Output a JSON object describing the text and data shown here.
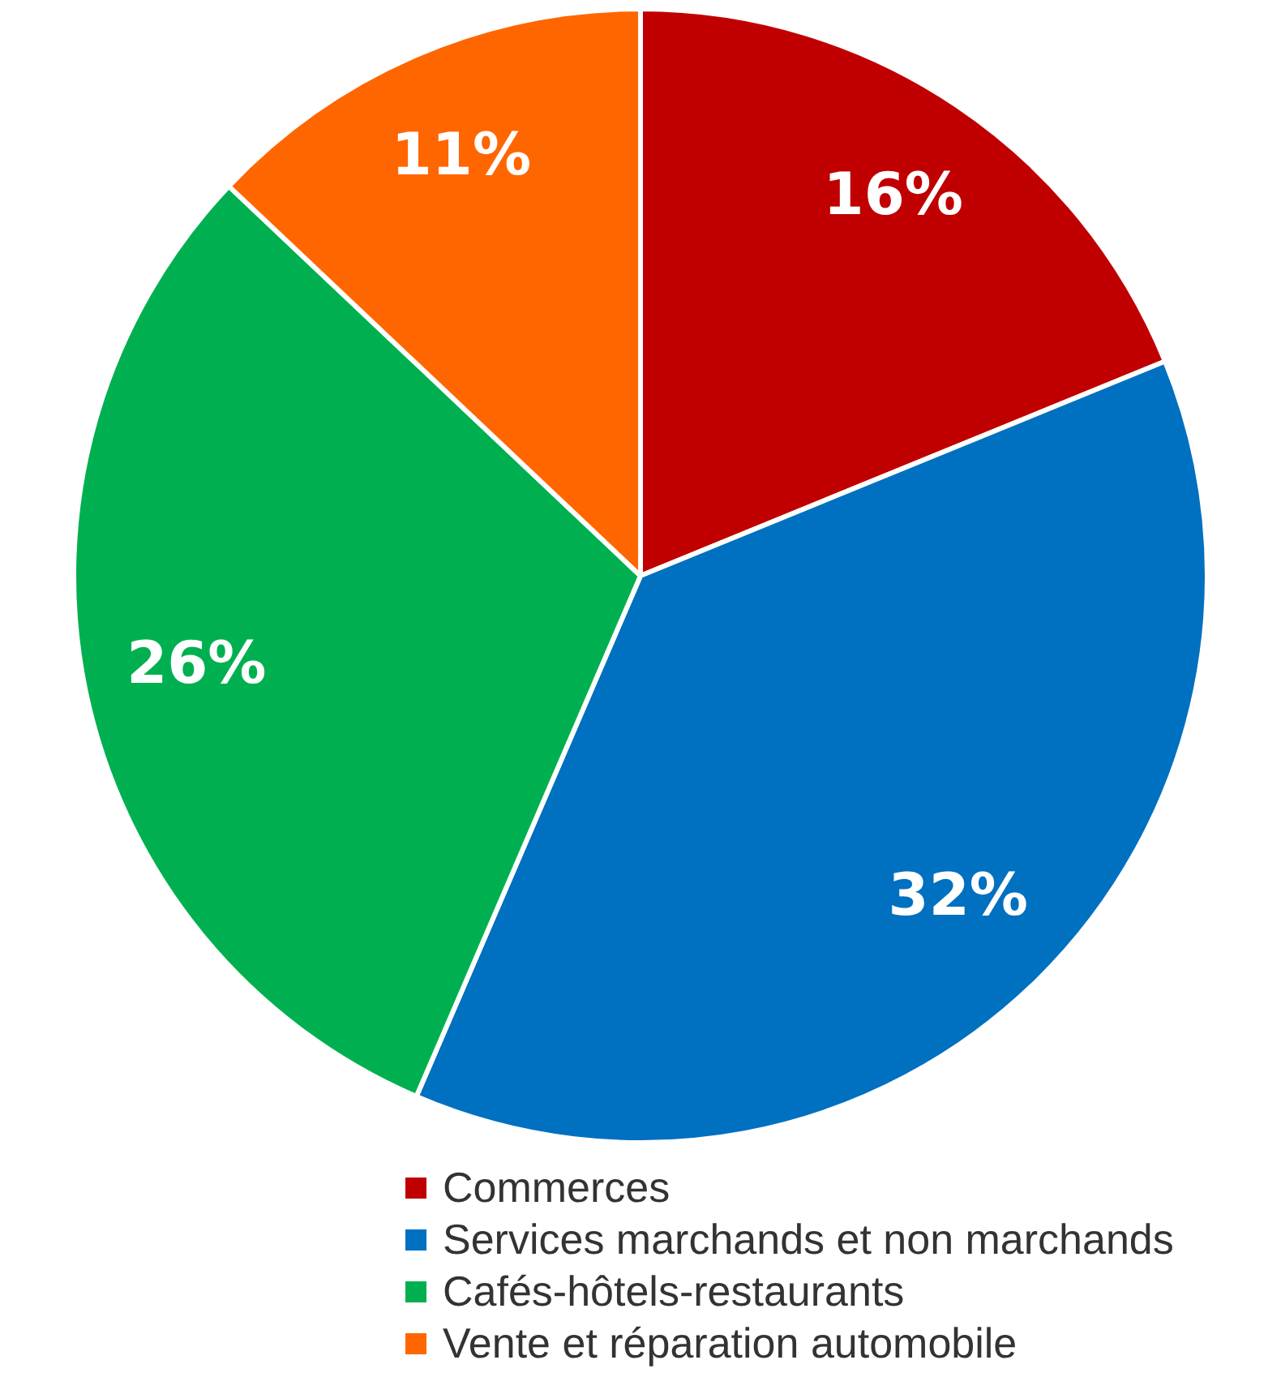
{
  "chart_data": {
    "type": "pie",
    "categories": [
      "Commerces",
      "Services marchands et non marchands",
      "Cafés-hôtels-restaurants",
      "Vente et réparation automobile"
    ],
    "values": [
      16,
      32,
      26,
      11
    ],
    "colors": [
      "#c00000",
      "#0070c0",
      "#00b050",
      "#ff6600"
    ],
    "value_labels": [
      "16%",
      "32%",
      "26%",
      "11%"
    ],
    "legend": "bottom"
  }
}
